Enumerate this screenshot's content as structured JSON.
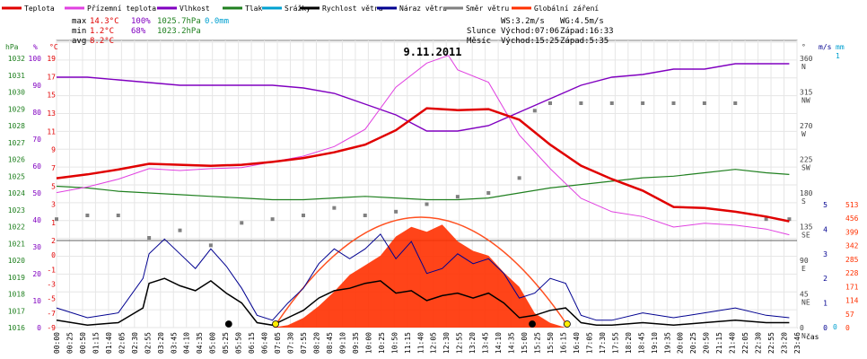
{
  "chart_data": {
    "type": "line",
    "title": "9.11.2011",
    "xlabel": "čas",
    "legend": [
      {
        "name": "Teplota",
        "color": "#e00000"
      },
      {
        "name": "Přízemní teplota",
        "color": "#e040e0"
      },
      {
        "name": "Vlhkost",
        "color": "#8000c0"
      },
      {
        "name": "Tlak",
        "color": "#208020"
      },
      {
        "name": "Srážky",
        "color": "#00a0d0"
      },
      {
        "name": "Rychlost větru",
        "color": "#000000"
      },
      {
        "name": "Náraz větru",
        "color": "#000090"
      },
      {
        "name": "Směr větru",
        "color": "#808080"
      },
      {
        "name": "Globální záření",
        "color": "#ff3000"
      }
    ],
    "stats": {
      "max_label": "max",
      "max_temp": "14.3°C",
      "max_hum": "100%",
      "max_press": "1025.7hPa",
      "max_rain": "0.0mm",
      "min_label": "min",
      "min_temp": "1.2°C",
      "min_hum": "68%",
      "min_press": "1023.2hPa",
      "avg_label": "avg",
      "avg_temp": "8.2°C"
    },
    "info": {
      "ws": "WS:3.2m/s",
      "wg": "WG:4.5m/s",
      "sun_label": "Slunce",
      "sun_rise": "Východ:07:06",
      "sun_set": "Západ:16:33",
      "moon_label": "Měsíc",
      "moon_rise": "Východ:15:25",
      "moon_set": "Západ:5:35"
    },
    "axes": {
      "hpa_unit": "hPa",
      "pct_unit": "%",
      "c_unit": "°C",
      "deg_unit": "°",
      "ms_unit": "m/s",
      "mm_unit": "mm",
      "hpa_ticks": [
        "1032",
        "1031",
        "1030",
        "1029",
        "1028",
        "1027",
        "1026",
        "1025",
        "1024",
        "1023",
        "1022",
        "1021",
        "1020",
        "1019",
        "1018",
        "1017",
        "1016"
      ],
      "pct_ticks": [
        "100",
        "90",
        "80",
        "70",
        "60",
        "50",
        "40",
        "30",
        "20",
        "10",
        "0"
      ],
      "temp_top_ticks": [
        "19",
        "17",
        "15",
        "13",
        "11",
        "9",
        "7",
        "5",
        "3",
        "1"
      ],
      "temp_bottom_ticks": [
        "2",
        "0",
        "-1",
        "-3",
        "-5",
        "-7",
        "-9"
      ],
      "dir_ticks": [
        {
          "deg": "360",
          "dir": "N"
        },
        {
          "deg": "315",
          "dir": "NW"
        },
        {
          "deg": "270",
          "dir": "W"
        },
        {
          "deg": "225",
          "dir": "SW"
        },
        {
          "deg": "180",
          "dir": "S"
        },
        {
          "deg": "135",
          "dir": "SE"
        },
        {
          "deg": "90",
          "dir": "E"
        },
        {
          "deg": "45",
          "dir": "NE"
        },
        {
          "deg": "0",
          "dir": "N"
        }
      ],
      "ms_ticks": [
        "5",
        "4",
        "3",
        "2",
        "1",
        "0"
      ],
      "mm_top": "1",
      "mm_zero": "0",
      "rad_ticks": [
        "513",
        "456",
        "399",
        "342",
        "285",
        "228",
        "171",
        "114",
        "57",
        "0"
      ],
      "time_ticks": [
        "00:00",
        "00:25",
        "00:50",
        "01:15",
        "01:40",
        "02:05",
        "02:30",
        "02:55",
        "03:20",
        "03:45",
        "04:10",
        "04:35",
        "05:00",
        "05:25",
        "05:50",
        "06:15",
        "06:40",
        "07:05",
        "07:30",
        "07:55",
        "08:20",
        "08:45",
        "09:10",
        "09:35",
        "10:00",
        "10:25",
        "10:50",
        "11:15",
        "11:40",
        "12:05",
        "12:30",
        "12:55",
        "13:20",
        "13:45",
        "14:10",
        "14:35",
        "15:00",
        "15:25",
        "15:50",
        "16:15",
        "16:40",
        "17:05",
        "17:30",
        "17:55",
        "18:20",
        "18:45",
        "19:10",
        "19:35",
        "20:00",
        "20:25",
        "20:50",
        "21:15",
        "21:40",
        "22:05",
        "22:30",
        "22:55",
        "23:20",
        "23:46"
      ]
    },
    "series": [
      {
        "name": "Teplota",
        "unit": "°C",
        "x_hours": [
          0,
          1,
          2,
          3,
          4,
          5,
          6,
          7,
          8,
          9,
          10,
          11,
          12,
          13,
          14,
          15,
          16,
          17,
          18,
          19,
          20,
          21,
          22,
          23,
          23.75
        ],
        "values": [
          6.5,
          6.9,
          7.4,
          8.0,
          7.9,
          7.8,
          7.9,
          8.2,
          8.6,
          9.2,
          10.0,
          11.5,
          13.8,
          13.6,
          13.7,
          12.6,
          10.0,
          7.8,
          6.4,
          5.2,
          3.5,
          3.4,
          3.0,
          2.5,
          2.0
        ]
      },
      {
        "name": "Přízemní teplota",
        "unit": "°C",
        "x_hours": [
          0,
          1,
          2,
          3,
          4,
          5,
          6,
          7,
          8,
          9,
          10,
          11,
          12,
          12.7,
          13,
          14,
          15,
          16,
          17,
          18,
          19,
          20,
          21,
          22,
          23,
          23.75
        ],
        "values": [
          5.0,
          5.6,
          6.4,
          7.5,
          7.3,
          7.5,
          7.6,
          8.2,
          8.8,
          9.8,
          11.6,
          16.0,
          18.5,
          19.3,
          17.8,
          16.5,
          11.0,
          7.5,
          4.4,
          3.0,
          2.5,
          1.4,
          1.8,
          1.6,
          1.2,
          0.6
        ]
      },
      {
        "name": "Vlhkost",
        "unit": "%",
        "x_hours": [
          0,
          1,
          2,
          3,
          4,
          5,
          6,
          7,
          8,
          9,
          10,
          11,
          12,
          13,
          14,
          15,
          16,
          17,
          18,
          19,
          20,
          21,
          22,
          23,
          23.75
        ],
        "values": [
          93,
          93,
          92,
          91,
          90,
          90,
          90,
          90,
          89,
          87,
          83,
          79,
          73,
          73,
          75,
          80,
          85,
          90,
          93,
          94,
          96,
          96,
          98,
          98,
          98
        ]
      },
      {
        "name": "Tlak",
        "unit": "hPa",
        "x_hours": [
          0,
          1,
          2,
          3,
          4,
          5,
          6,
          7,
          8,
          9,
          10,
          11,
          12,
          13,
          14,
          15,
          16,
          17,
          18,
          19,
          20,
          21,
          22,
          23,
          23.75
        ],
        "values": [
          1024.4,
          1024.3,
          1024.1,
          1024.0,
          1023.9,
          1023.8,
          1023.7,
          1023.6,
          1023.6,
          1023.7,
          1023.8,
          1023.7,
          1023.6,
          1023.6,
          1023.7,
          1024.0,
          1024.3,
          1024.5,
          1024.7,
          1024.9,
          1025.0,
          1025.2,
          1025.4,
          1025.2,
          1025.1
        ]
      },
      {
        "name": "Rychlost větru",
        "unit": "m/s",
        "x_hours": [
          0,
          1,
          2,
          2.8,
          3,
          3.5,
          4,
          4.5,
          5,
          5.5,
          6,
          6.5,
          7,
          7.5,
          8,
          8.5,
          9,
          9.5,
          10,
          10.5,
          11,
          11.5,
          12,
          12.5,
          13,
          13.5,
          14,
          14.5,
          15,
          15.5,
          16,
          16.5,
          17,
          17.5,
          18,
          19,
          20,
          21,
          22,
          23,
          23.75
        ],
        "values": [
          0.3,
          0.1,
          0.2,
          0.8,
          1.8,
          2.0,
          1.7,
          1.5,
          1.9,
          1.4,
          1.0,
          0.2,
          0.1,
          0.4,
          0.7,
          1.2,
          1.5,
          1.6,
          1.8,
          1.9,
          1.4,
          1.5,
          1.1,
          1.3,
          1.4,
          1.2,
          1.4,
          1.0,
          0.4,
          0.5,
          0.7,
          0.8,
          0.2,
          0.1,
          0.1,
          0.2,
          0.1,
          0.2,
          0.3,
          0.2,
          0.2
        ]
      },
      {
        "name": "Náraz větru",
        "unit": "m/s",
        "x_hours": [
          0,
          1,
          2,
          2.8,
          3,
          3.5,
          4,
          4.5,
          5,
          5.5,
          6,
          6.5,
          7,
          7.5,
          8,
          8.5,
          9,
          9.5,
          10,
          10.5,
          11,
          11.5,
          12,
          12.5,
          13,
          13.5,
          14,
          14.5,
          15,
          15.5,
          16,
          16.5,
          17,
          17.5,
          18,
          19,
          20,
          21,
          22,
          23,
          23.75
        ],
        "values": [
          0.8,
          0.4,
          0.6,
          2.0,
          3.0,
          3.6,
          3.0,
          2.4,
          3.2,
          2.5,
          1.6,
          0.5,
          0.3,
          1.0,
          1.6,
          2.6,
          3.2,
          2.8,
          3.2,
          3.8,
          2.8,
          3.5,
          2.2,
          2.4,
          3.0,
          2.6,
          2.8,
          2.2,
          1.2,
          1.4,
          2.0,
          1.8,
          0.5,
          0.3,
          0.3,
          0.6,
          0.4,
          0.6,
          0.8,
          0.5,
          0.4
        ]
      },
      {
        "name": "Směr větru",
        "unit": "°",
        "x_hours": [
          0,
          1,
          2,
          3,
          4,
          5,
          6,
          7,
          8,
          9,
          10,
          11,
          12,
          13,
          14,
          15,
          15.5,
          16,
          17,
          18,
          19,
          20,
          21,
          22,
          23,
          23.75
        ],
        "values": [
          145,
          150,
          150,
          120,
          130,
          110,
          140,
          145,
          150,
          160,
          150,
          155,
          165,
          175,
          180,
          200,
          290,
          300,
          300,
          300,
          300,
          300,
          300,
          300,
          145,
          145
        ]
      },
      {
        "name": "Globální záření",
        "unit": "W/m2",
        "x_hours": [
          7,
          7.5,
          8,
          8.5,
          9,
          9.5,
          10,
          10.5,
          11,
          11.5,
          12,
          12.5,
          13,
          13.5,
          14,
          14.5,
          15,
          15.5,
          16,
          16.5
        ],
        "values": [
          0,
          10,
          40,
          90,
          150,
          220,
          260,
          300,
          380,
          420,
          400,
          430,
          360,
          320,
          300,
          230,
          170,
          60,
          20,
          0
        ]
      }
    ]
  }
}
